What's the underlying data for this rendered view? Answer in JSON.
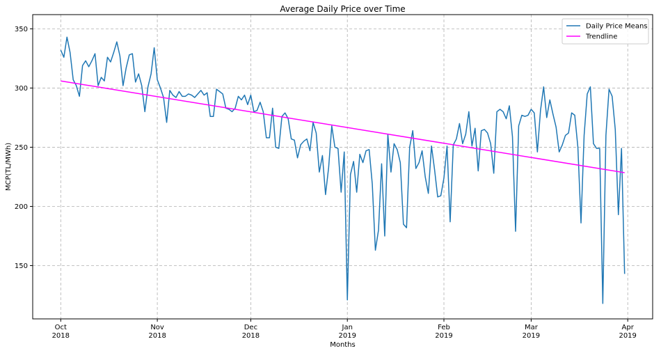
{
  "chart_data": {
    "type": "line",
    "title": "Average Daily Price over Time",
    "xlabel": "Months",
    "ylabel": "MCP(TL/MWh)",
    "x_start": "2018-10-01",
    "x_end": "2019-03-31",
    "xlim": [
      "2018-09-22",
      "2019-04-09"
    ],
    "ylim": [
      105,
      362
    ],
    "yticks": [
      150,
      200,
      250,
      300,
      350
    ],
    "xticks": [
      {
        "date": "2018-10-01",
        "month": "Oct",
        "year": "2018"
      },
      {
        "date": "2018-11-01",
        "month": "Nov",
        "year": "2018"
      },
      {
        "date": "2018-12-01",
        "month": "Dec",
        "year": "2018"
      },
      {
        "date": "2019-01-01",
        "month": "Jan",
        "year": "2019"
      },
      {
        "date": "2019-02-01",
        "month": "Feb",
        "year": "2019"
      },
      {
        "date": "2019-03-01",
        "month": "Mar",
        "year": "2019"
      },
      {
        "date": "2019-04-01",
        "month": "Apr",
        "year": "2019"
      }
    ],
    "grid": true,
    "legend_position": "top-right",
    "series": [
      {
        "name": "Daily Price Means",
        "color": "#1f77b4",
        "values": [
          332,
          326,
          343,
          330,
          307,
          302,
          293,
          319,
          323,
          318,
          323,
          329,
          302,
          309,
          306,
          326,
          322,
          330,
          339,
          327,
          302,
          317,
          328,
          329,
          305,
          312,
          302,
          280,
          301,
          312,
          334,
          307,
          300,
          292,
          271,
          298,
          294,
          292,
          297,
          293,
          293,
          295,
          294,
          292,
          295,
          298,
          294,
          296,
          276,
          276,
          299,
          297,
          295,
          283,
          282,
          280,
          283,
          293,
          290,
          294,
          286,
          294,
          280,
          281,
          288,
          280,
          258,
          258,
          283,
          250,
          249,
          276,
          279,
          274,
          257,
          256,
          241,
          252,
          255,
          257,
          247,
          271,
          262,
          229,
          243,
          210,
          233,
          268,
          250,
          249,
          212,
          246,
          121,
          227,
          238,
          212,
          244,
          237,
          247,
          248,
          219,
          163,
          180,
          236,
          175,
          261,
          229,
          253,
          248,
          237,
          185,
          182,
          250,
          264,
          232,
          237,
          247,
          225,
          211,
          251,
          231,
          208,
          209,
          224,
          251,
          187,
          252,
          257,
          270,
          253,
          261,
          280,
          251,
          266,
          230,
          264,
          265,
          262,
          253,
          228,
          280,
          282,
          280,
          274,
          285,
          259,
          179,
          268,
          277,
          276,
          277,
          282,
          279,
          246,
          281,
          301,
          275,
          290,
          278,
          267,
          246,
          252,
          260,
          262,
          279,
          277,
          250,
          186,
          260,
          295,
          301,
          253,
          249,
          249,
          118,
          260,
          299,
          293,
          265,
          193,
          249,
          143
        ]
      },
      {
        "name": "Trendline",
        "color": "#ff00ff",
        "values": [
          306.0,
          228.5
        ]
      }
    ]
  }
}
